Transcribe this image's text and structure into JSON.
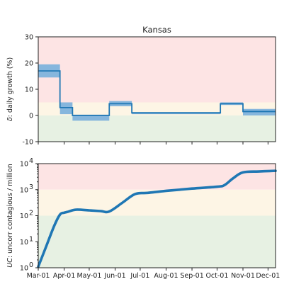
{
  "chart_data": [
    {
      "type": "line",
      "title": "Kansas",
      "ylabel_prefix": "δ",
      "ylabel_rest": ": daily growth (%)",
      "xlim": [
        "2020-03-01",
        "2020-12-10"
      ],
      "ylim": [
        -10,
        30
      ],
      "yticks": [
        -10,
        0,
        10,
        20,
        30
      ],
      "zones": [
        {
          "from": 5,
          "to": 30,
          "color": "#fde4e4"
        },
        {
          "from": 0,
          "to": 5,
          "color": "#fdf5e5"
        },
        {
          "from": -10,
          "to": 0,
          "color": "#e7f1e3"
        }
      ],
      "series": [
        {
          "step_value": [
            17,
            3,
            0,
            4.5,
            1,
            4.5,
            1.5
          ],
          "step_low": [
            14.5,
            0.5,
            -2,
            3.5,
            0.5,
            4,
            0
          ],
          "step_high": [
            19.5,
            5,
            0.3,
            5.5,
            1.3,
            5,
            2.5
          ],
          "step_start": [
            "2020-03-01",
            "2020-03-27",
            "2020-04-11",
            "2020-05-25",
            "2020-06-21",
            "2020-10-05",
            "2020-11-01"
          ],
          "step_end": [
            "2020-03-27",
            "2020-04-11",
            "2020-05-25",
            "2020-06-21",
            "2020-10-05",
            "2020-11-01",
            "2020-12-10"
          ],
          "line_color": "#1f77b4",
          "band_color": "#86b6dd"
        }
      ]
    },
    {
      "type": "line",
      "ylabel_prefix": "UC",
      "ylabel_rest": ": uncorr contagious / million",
      "yscale": "log",
      "xlim": [
        "2020-03-01",
        "2020-12-10"
      ],
      "ylim": [
        1,
        10000
      ],
      "ytick_exponents": [
        0,
        1,
        2,
        3,
        4
      ],
      "ytick_base": "10",
      "zones": [
        {
          "from": 1000,
          "to": 10000,
          "color": "#fde4e4"
        },
        {
          "from": 100,
          "to": 1000,
          "color": "#fdf5e5"
        },
        {
          "from": 1,
          "to": 100,
          "color": "#e7f1e3"
        }
      ],
      "x_tick_dates": [
        "2020-03-01",
        "2020-04-01",
        "2020-05-01",
        "2020-06-01",
        "2020-07-01",
        "2020-08-01",
        "2020-09-01",
        "2020-10-01",
        "2020-11-01",
        "2020-12-01"
      ],
      "x_tick_labels": [
        "Mar-01",
        "Apr-01",
        "May-01",
        "Jun-01",
        "Jul-01",
        "Aug-01",
        "Sep-01",
        "Oct-01",
        "Nov-01",
        "Dec-01"
      ],
      "series": [
        {
          "x": [
            "2020-03-01",
            "2020-03-10",
            "2020-03-20",
            "2020-03-27",
            "2020-04-01",
            "2020-04-05",
            "2020-04-15",
            "2020-05-01",
            "2020-05-15",
            "2020-05-25",
            "2020-06-10",
            "2020-06-25",
            "2020-07-10",
            "2020-08-01",
            "2020-09-01",
            "2020-10-01",
            "2020-10-10",
            "2020-10-20",
            "2020-11-01",
            "2020-11-20",
            "2020-12-10"
          ],
          "y": [
            1.1,
            6,
            40,
            110,
            130,
            140,
            170,
            160,
            150,
            145,
            320,
            680,
            750,
            900,
            1100,
            1300,
            1500,
            2700,
            4600,
            5000,
            5300
          ],
          "color": "#1f77b4"
        }
      ]
    }
  ]
}
